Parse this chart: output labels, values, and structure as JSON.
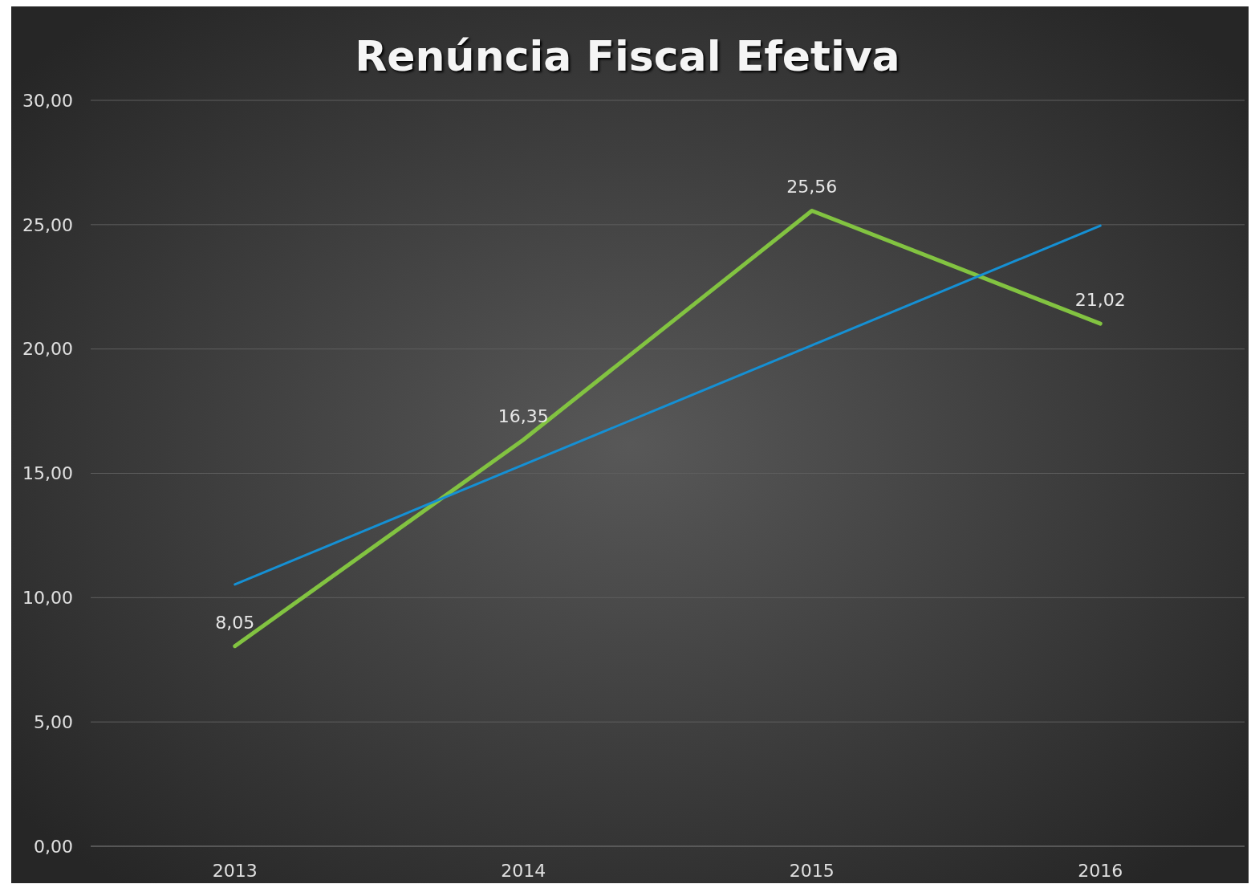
{
  "chart_data": {
    "type": "line",
    "title": "Renúncia Fiscal Efetiva",
    "categories": [
      "2013",
      "2014",
      "2015",
      "2016"
    ],
    "series": [
      {
        "color": "#82c341",
        "values": [
          8.05,
          16.35,
          25.56,
          21.02
        ],
        "value_labels": [
          "8,05",
          "16,35",
          "25,56",
          "21,02"
        ]
      },
      {
        "type": "line",
        "color": "#1590d4",
        "values": [
          10.53,
          15.34,
          20.15,
          24.96
        ]
      }
    ],
    "ylim": [
      0,
      30
    ],
    "yticks": [
      {
        "value": 0,
        "label": "0,00"
      },
      {
        "value": 5,
        "label": "5,00"
      },
      {
        "value": 10,
        "label": "10,00"
      },
      {
        "value": 15,
        "label": "15,00"
      },
      {
        "value": 20,
        "label": "20,00"
      },
      {
        "value": 25,
        "label": "25,00"
      },
      {
        "value": 30,
        "label": "30,00"
      }
    ],
    "grid": "y",
    "marker": "none",
    "line_style": "solid"
  }
}
